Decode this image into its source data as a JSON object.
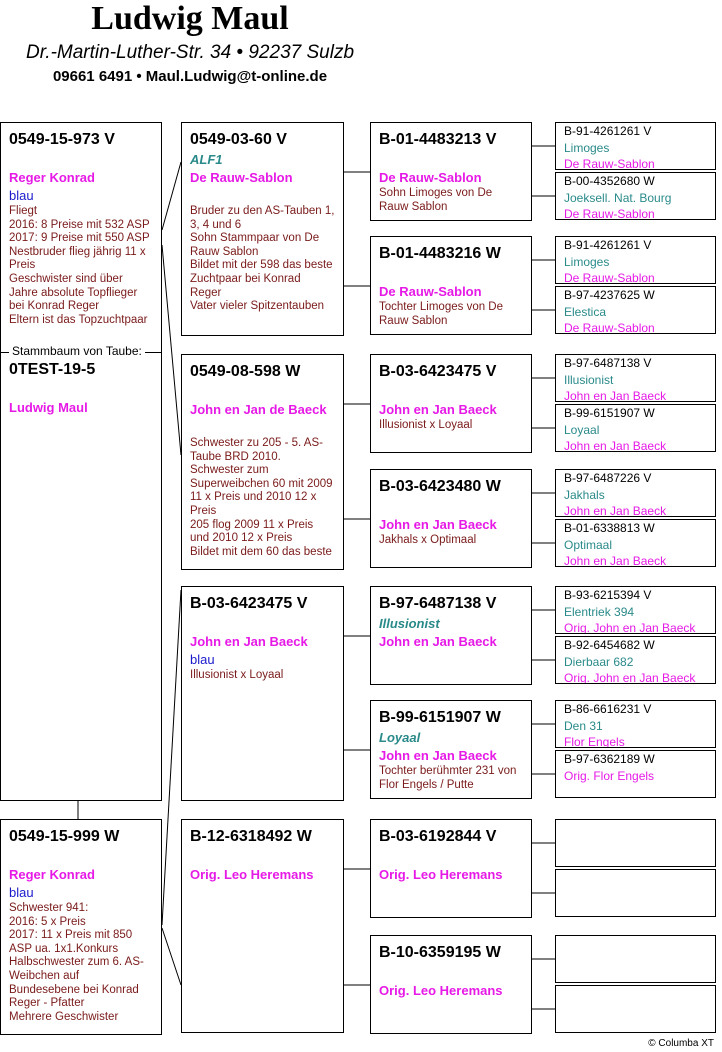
{
  "header": {
    "title": "Ludwig Maul",
    "address": "Dr.-Martin-Luther-Str. 34 • 92237 Sulzb",
    "contact": "09661 6491 • Maul.Ludwig@t-online.de"
  },
  "subject_label": "Stammbaum von Taube:",
  "gen1": [
    {
      "id": "0549-15-973 V",
      "breeder": "Reger Konrad",
      "color": "blau",
      "notes": "Fliegt\n2016: 8 Preise mit 532 ASP\n2017: 9 Preise mit 550 ASP\nNestbruder flieg jährig 11 x Preis\nGeschwister sind über Jahre absolute Topflieger bei Konrad Reger\nEltern ist das Topzuchtpaar"
    },
    {
      "id": "0TEST-19-5",
      "breeder": "Ludwig Maul"
    },
    {
      "id": "0549-15-999 W",
      "breeder": "Reger Konrad",
      "color": "blau",
      "notes": "Schwester 941:\n2016: 5 x Preis\n2017: 11 x Preis mit 850 ASP ua. 1x1.Konkurs\nHalbschwester zum 6. AS-Weibchen auf Bundesebene bei Konrad Reger - Pfatter\nMehrere Geschwister"
    }
  ],
  "gen2": [
    {
      "id": "0549-03-60 V",
      "name": "ALF1",
      "breeder": "De Rauw-Sablon",
      "notes": "Bruder zu den AS-Tauben 1, 3, 4 und 6\nSohn Stammpaar von De Rauw Sablon\nBildet mit der 598 das beste Zuchtpaar bei Konrad Reger\nVater vieler Spitzentauben"
    },
    {
      "id": "0549-08-598 W",
      "breeder": "John en Jan de Baeck",
      "notes": "Schwester zu 205 - 5. AS-Taube BRD 2010.\nSchwester zum Superweibchen 60 mit 2009 11 x Preis und 2010 12 x Preis\n205 flog 2009 11 x Preis und 2010 12 x Preis\nBildet mit dem 60 das beste"
    },
    {
      "id": "B-03-6423475 V",
      "breeder": "John  en Jan Baeck",
      "color": "blau",
      "notes": "Illusionist x Loyaal"
    },
    {
      "id": "B-12-6318492 W",
      "breeder": "Orig. Leo Heremans"
    }
  ],
  "gen3": [
    {
      "id": "B-01-4483213 V",
      "breeder": "De Rauw-Sablon",
      "notes": "Sohn Limoges von De Rauw Sablon"
    },
    {
      "id": "B-01-4483216 W",
      "breeder": "De Rauw-Sablon",
      "notes": "Tochter Limoges von De Rauw Sablon"
    },
    {
      "id": "B-03-6423475 V",
      "breeder": "John  en Jan Baeck",
      "notes": "Illusionist x Loyaal"
    },
    {
      "id": "B-03-6423480 W",
      "breeder": "John  en Jan Baeck",
      "notes": "Jakhals x Optimaal"
    },
    {
      "id": "B-97-6487138 V",
      "name": "Illusionist",
      "breeder": "John  en Jan Baeck"
    },
    {
      "id": "B-99-6151907 W",
      "name": "Loyaal",
      "breeder": "John  en Jan Baeck",
      "notes": "Tochter berühmter 231 von Flor Engels / Putte"
    },
    {
      "id": "B-03-6192844 V",
      "breeder": "Orig. Leo Heremans"
    },
    {
      "id": "B-10-6359195 W",
      "breeder": "Orig. Leo Heremans"
    }
  ],
  "gen4": [
    {
      "id": "B-91-4261261 V",
      "name": "Limoges",
      "breeder": "De Rauw-Sablon"
    },
    {
      "id": "B-00-4352680 W",
      "name": "Joeksell. Nat. Bourg",
      "breeder": "De Rauw-Sablon"
    },
    {
      "id": "B-91-4261261 V",
      "name": "Limoges",
      "breeder": "De Rauw-Sablon"
    },
    {
      "id": "B-97-4237625 W",
      "name": "Elestica",
      "breeder": "De Rauw-Sablon"
    },
    {
      "id": "B-97-6487138 V",
      "name": "Illusionist",
      "breeder": "John  en Jan Baeck"
    },
    {
      "id": "B-99-6151907 W",
      "name": "Loyaal",
      "breeder": "John  en Jan Baeck"
    },
    {
      "id": "B-97-6487226 V",
      "name": "Jakhals",
      "breeder": "John  en Jan Baeck"
    },
    {
      "id": "B-01-6338813 W",
      "name": "Optimaal",
      "breeder": "John  en Jan Baeck"
    },
    {
      "id": "B-93-6215394 V",
      "name": "Elentriek 394",
      "breeder": "Orig. John en Jan Baeck"
    },
    {
      "id": "B-92-6454682 W",
      "name": "Dierbaar 682",
      "breeder": "Orig. John en Jan Baeck"
    },
    {
      "id": "B-86-6616231 V",
      "name": "Den 31",
      "breeder": "Flor Engels"
    },
    {
      "id": "B-97-6362189 W",
      "breeder": "Orig. Flor Engels"
    },
    {},
    {},
    {},
    {}
  ],
  "footer": "© Columba XT",
  "colors": {
    "breeder": "#e619e6",
    "name": "#2a8a8a",
    "notes": "#7a1a1a",
    "color": "#1a1acc"
  }
}
